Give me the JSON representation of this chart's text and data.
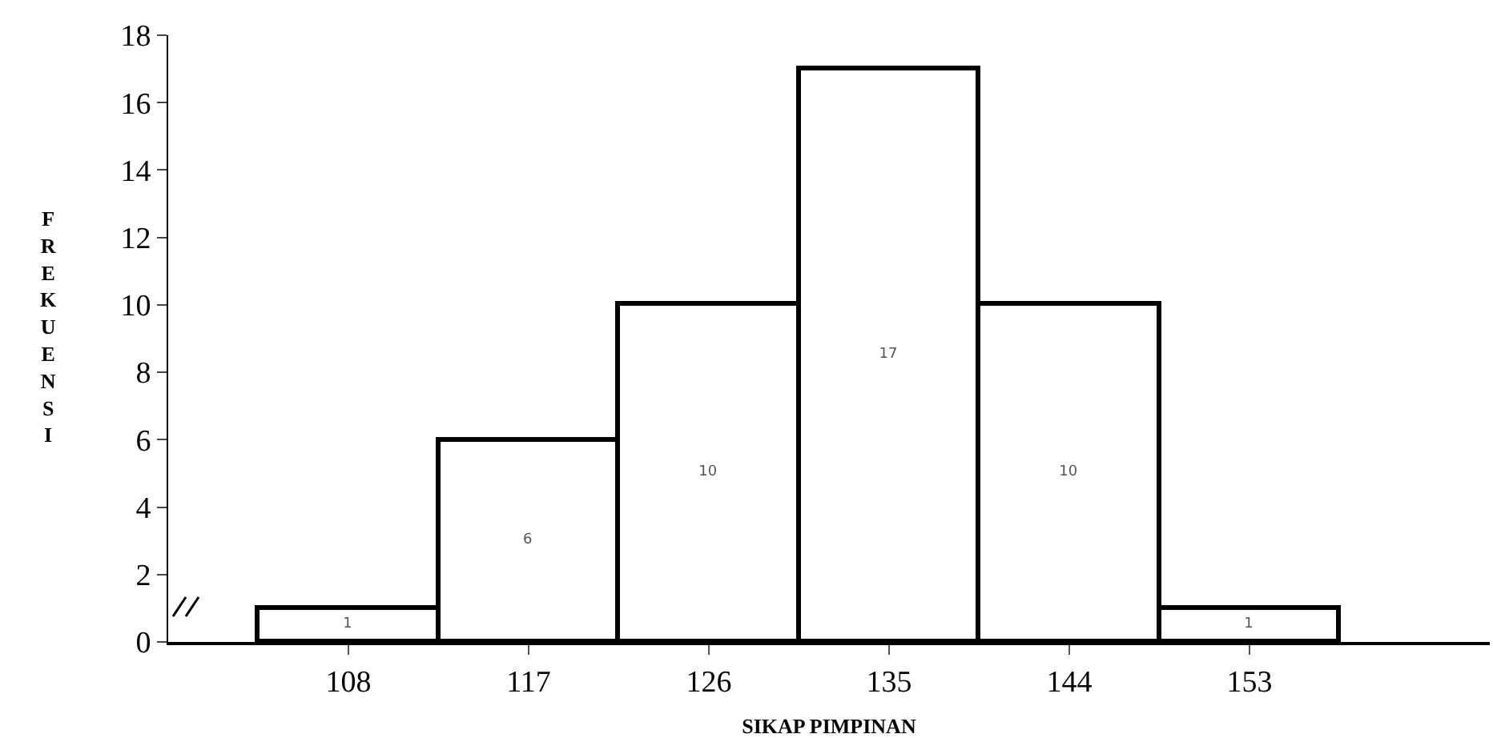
{
  "chart_data": {
    "type": "histogram",
    "xlabel": "SIKAP PIMPINAN",
    "ylabel": "FREKUENSI",
    "bins": [
      103.5,
      112.5,
      121.5,
      130.5,
      139.5,
      148.5,
      157.5
    ],
    "values": [
      1,
      6,
      10,
      17,
      10,
      1
    ],
    "color": "#ffffff",
    "xlim": [
      99,
      165
    ],
    "xticks": [
      108,
      117,
      126,
      135,
      144,
      153
    ],
    "ylim": [
      0,
      18
    ],
    "yticks": [
      0,
      2,
      4,
      6,
      8,
      10,
      12,
      14,
      16,
      18
    ],
    "grid": false,
    "data_labels": true
  }
}
